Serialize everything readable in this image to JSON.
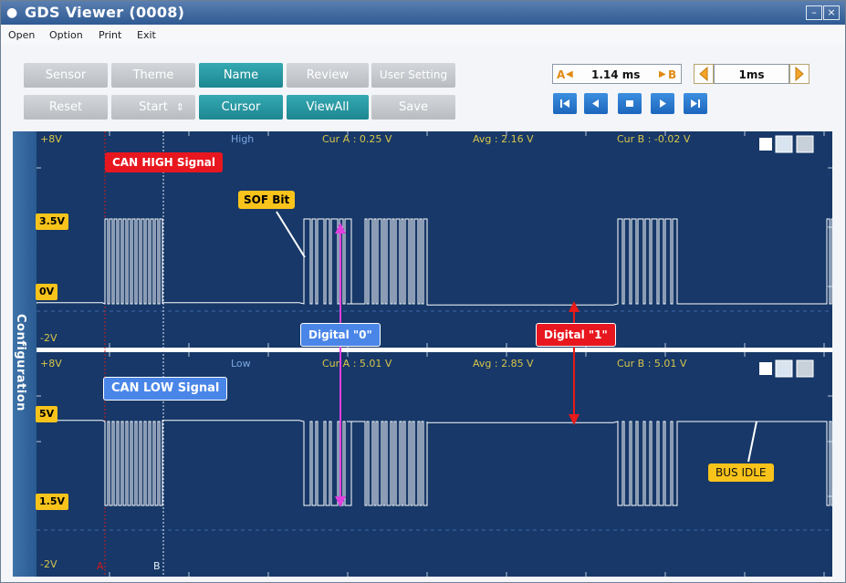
{
  "window": {
    "title": "GDS Viewer (0008)"
  },
  "menu": [
    "Open",
    "Option",
    "Print",
    "Exit"
  ],
  "toolbar": {
    "row1": [
      "Sensor",
      "Theme",
      "Name",
      "Review",
      "User Setting"
    ],
    "row2": [
      "Reset",
      "Start",
      "Cursor",
      "ViewAll",
      "Save"
    ],
    "cursor_a_label": "A",
    "cursor_delta": "1.14 ms",
    "cursor_b_label": "B",
    "time_div": "1ms"
  },
  "sidebar": {
    "label": "Configuration"
  },
  "panel_high": {
    "top_scale": "+8V",
    "bottom_scale": "-2V",
    "channel": "High",
    "cur_a": "Cur A : 0.25 V",
    "avg": "Avg : 2.16 V",
    "cur_b": "Cur B : -0.02 V",
    "y_marks": [
      "3.5V",
      "0V"
    ]
  },
  "panel_low": {
    "top_scale": "+8V",
    "bottom_scale": "-2V",
    "channel": "Low",
    "cur_a": "Cur A : 5.01 V",
    "avg": "Avg : 2.85 V",
    "cur_b": "Cur B : 5.01 V",
    "y_marks": [
      "5V",
      "1.5V"
    ],
    "cursor_a": "A",
    "cursor_b": "B"
  },
  "annotations": {
    "can_high": "CAN HIGH Signal",
    "can_low": "CAN LOW Signal",
    "sof": "SOF Bit",
    "digital0": "Digital \"0\"",
    "digital1": "Digital \"1\"",
    "bus_idle": "BUS IDLE"
  },
  "colors": {
    "plot_bg": "#173868",
    "teal_button": "#1d8791",
    "gray_button": "#c2c6ca",
    "trace": "#ffffff",
    "header_text_yellow": "#d8c64a",
    "cursor_a_line": "#d11a1a"
  }
}
